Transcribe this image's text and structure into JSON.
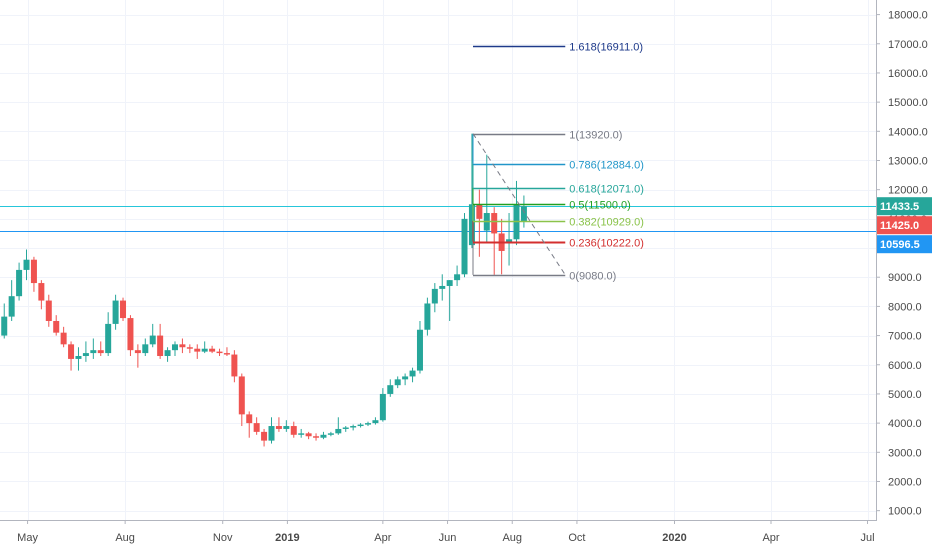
{
  "chart_data": {
    "type": "candlestick",
    "title": "",
    "y_range": [
      680,
      18500
    ],
    "y_ticks": [
      1000,
      2000,
      3000,
      4000,
      5000,
      6000,
      7000,
      8000,
      9000,
      10000,
      11000,
      12000,
      13000,
      14000,
      15000,
      16000,
      17000,
      18000
    ],
    "y_tick_labels": [
      "1000.0",
      "2000.0",
      "3000.0",
      "4000.0",
      "5000.0",
      "6000.0",
      "7000.0",
      "8000.0",
      "9000.0",
      "10000.0",
      "11000.0",
      "12000.0",
      "13000.0",
      "14000.0",
      "15000.0",
      "16000.0",
      "17000.0",
      "18000.0"
    ],
    "x_range": [
      "2018-04-05",
      "2020-07-09"
    ],
    "x_ticks": [
      {
        "date": "2018-05-01",
        "label": "May"
      },
      {
        "date": "2018-08-01",
        "label": "Aug"
      },
      {
        "date": "2018-11-01",
        "label": "Nov"
      },
      {
        "date": "2019-01-01",
        "label": "2019"
      },
      {
        "date": "2019-04-01",
        "label": "Apr"
      },
      {
        "date": "2019-06-01",
        "label": "Jun"
      },
      {
        "date": "2019-08-01",
        "label": "Aug"
      },
      {
        "date": "2019-10-01",
        "label": "Oct"
      },
      {
        "date": "2020-01-01",
        "label": "2020"
      },
      {
        "date": "2020-04-01",
        "label": "Apr"
      },
      {
        "date": "2020-07-01",
        "label": "Jul"
      }
    ],
    "colors": {
      "up": "#26a69a",
      "down": "#ef5350"
    },
    "candles": [
      {
        "date": "2018-04-09",
        "o": 7000,
        "h": 8100,
        "l": 6900,
        "c": 7650
      },
      {
        "date": "2018-04-16",
        "o": 7650,
        "h": 8900,
        "l": 7500,
        "c": 8350
      },
      {
        "date": "2018-04-23",
        "o": 8350,
        "h": 9500,
        "l": 8200,
        "c": 9250
      },
      {
        "date": "2018-04-30",
        "o": 9250,
        "h": 9950,
        "l": 8900,
        "c": 9600
      },
      {
        "date": "2018-05-07",
        "o": 9600,
        "h": 9700,
        "l": 8500,
        "c": 8800
      },
      {
        "date": "2018-05-14",
        "o": 8800,
        "h": 8900,
        "l": 7900,
        "c": 8200
      },
      {
        "date": "2018-05-21",
        "o": 8200,
        "h": 8400,
        "l": 7300,
        "c": 7500
      },
      {
        "date": "2018-05-28",
        "o": 7500,
        "h": 7700,
        "l": 7000,
        "c": 7100
      },
      {
        "date": "2018-06-04",
        "o": 7100,
        "h": 7300,
        "l": 6600,
        "c": 6700
      },
      {
        "date": "2018-06-11",
        "o": 6700,
        "h": 6800,
        "l": 5800,
        "c": 6200
      },
      {
        "date": "2018-06-18",
        "o": 6200,
        "h": 6600,
        "l": 5800,
        "c": 6300
      },
      {
        "date": "2018-06-25",
        "o": 6300,
        "h": 6800,
        "l": 6100,
        "c": 6400
      },
      {
        "date": "2018-07-02",
        "o": 6400,
        "h": 6900,
        "l": 6200,
        "c": 6500
      },
      {
        "date": "2018-07-09",
        "o": 6500,
        "h": 6800,
        "l": 6300,
        "c": 6400
      },
      {
        "date": "2018-07-16",
        "o": 6400,
        "h": 7800,
        "l": 6300,
        "c": 7400
      },
      {
        "date": "2018-07-23",
        "o": 7400,
        "h": 8400,
        "l": 7200,
        "c": 8200
      },
      {
        "date": "2018-07-30",
        "o": 8200,
        "h": 8300,
        "l": 7500,
        "c": 7600
      },
      {
        "date": "2018-08-06",
        "o": 7600,
        "h": 7700,
        "l": 6300,
        "c": 6500
      },
      {
        "date": "2018-08-13",
        "o": 6500,
        "h": 6700,
        "l": 5900,
        "c": 6400
      },
      {
        "date": "2018-08-20",
        "o": 6400,
        "h": 6900,
        "l": 6300,
        "c": 6700
      },
      {
        "date": "2018-08-27",
        "o": 6700,
        "h": 7400,
        "l": 6600,
        "c": 7000
      },
      {
        "date": "2018-09-03",
        "o": 7000,
        "h": 7400,
        "l": 6200,
        "c": 6300
      },
      {
        "date": "2018-09-10",
        "o": 6300,
        "h": 6600,
        "l": 6100,
        "c": 6500
      },
      {
        "date": "2018-09-17",
        "o": 6500,
        "h": 6800,
        "l": 6300,
        "c": 6700
      },
      {
        "date": "2018-09-24",
        "o": 6700,
        "h": 6900,
        "l": 6400,
        "c": 6600
      },
      {
        "date": "2018-10-01",
        "o": 6600,
        "h": 6700,
        "l": 6400,
        "c": 6550
      },
      {
        "date": "2018-10-08",
        "o": 6550,
        "h": 6700,
        "l": 6200,
        "c": 6450
      },
      {
        "date": "2018-10-15",
        "o": 6450,
        "h": 6800,
        "l": 6400,
        "c": 6550
      },
      {
        "date": "2018-10-22",
        "o": 6550,
        "h": 6650,
        "l": 6400,
        "c": 6450
      },
      {
        "date": "2018-10-29",
        "o": 6450,
        "h": 6550,
        "l": 6300,
        "c": 6400
      },
      {
        "date": "2018-11-05",
        "o": 6400,
        "h": 6600,
        "l": 6300,
        "c": 6350
      },
      {
        "date": "2018-11-12",
        "o": 6350,
        "h": 6500,
        "l": 5400,
        "c": 5600
      },
      {
        "date": "2018-11-19",
        "o": 5600,
        "h": 5700,
        "l": 3900,
        "c": 4300
      },
      {
        "date": "2018-11-26",
        "o": 4300,
        "h": 4400,
        "l": 3500,
        "c": 4000
      },
      {
        "date": "2018-12-03",
        "o": 4000,
        "h": 4200,
        "l": 3600,
        "c": 3700
      },
      {
        "date": "2018-12-10",
        "o": 3700,
        "h": 3800,
        "l": 3200,
        "c": 3400
      },
      {
        "date": "2018-12-17",
        "o": 3400,
        "h": 4200,
        "l": 3300,
        "c": 3900
      },
      {
        "date": "2018-12-24",
        "o": 3900,
        "h": 4200,
        "l": 3700,
        "c": 3800
      },
      {
        "date": "2018-12-31",
        "o": 3800,
        "h": 4100,
        "l": 3700,
        "c": 3900
      },
      {
        "date": "2019-01-07",
        "o": 3900,
        "h": 4050,
        "l": 3500,
        "c": 3600
      },
      {
        "date": "2019-01-14",
        "o": 3600,
        "h": 3800,
        "l": 3500,
        "c": 3650
      },
      {
        "date": "2019-01-21",
        "o": 3650,
        "h": 3700,
        "l": 3450,
        "c": 3550
      },
      {
        "date": "2019-01-28",
        "o": 3550,
        "h": 3650,
        "l": 3400,
        "c": 3500
      },
      {
        "date": "2019-02-04",
        "o": 3500,
        "h": 3700,
        "l": 3450,
        "c": 3600
      },
      {
        "date": "2019-02-11",
        "o": 3600,
        "h": 3700,
        "l": 3550,
        "c": 3650
      },
      {
        "date": "2019-02-18",
        "o": 3650,
        "h": 4200,
        "l": 3600,
        "c": 3800
      },
      {
        "date": "2019-02-25",
        "o": 3800,
        "h": 3900,
        "l": 3700,
        "c": 3850
      },
      {
        "date": "2019-03-04",
        "o": 3850,
        "h": 3950,
        "l": 3750,
        "c": 3900
      },
      {
        "date": "2019-03-11",
        "o": 3900,
        "h": 4000,
        "l": 3850,
        "c": 3950
      },
      {
        "date": "2019-03-18",
        "o": 3950,
        "h": 4050,
        "l": 3900,
        "c": 4000
      },
      {
        "date": "2019-03-25",
        "o": 4000,
        "h": 4200,
        "l": 3950,
        "c": 4100
      },
      {
        "date": "2019-04-01",
        "o": 4100,
        "h": 5200,
        "l": 4050,
        "c": 5000
      },
      {
        "date": "2019-04-08",
        "o": 5000,
        "h": 5500,
        "l": 4900,
        "c": 5300
      },
      {
        "date": "2019-04-15",
        "o": 5300,
        "h": 5600,
        "l": 5200,
        "c": 5500
      },
      {
        "date": "2019-04-22",
        "o": 5500,
        "h": 5700,
        "l": 5300,
        "c": 5600
      },
      {
        "date": "2019-04-29",
        "o": 5600,
        "h": 5900,
        "l": 5400,
        "c": 5800
      },
      {
        "date": "2019-05-06",
        "o": 5800,
        "h": 7500,
        "l": 5700,
        "c": 7200
      },
      {
        "date": "2019-05-13",
        "o": 7200,
        "h": 8300,
        "l": 7000,
        "c": 8100
      },
      {
        "date": "2019-05-20",
        "o": 8100,
        "h": 8800,
        "l": 7800,
        "c": 8600
      },
      {
        "date": "2019-05-27",
        "o": 8600,
        "h": 9100,
        "l": 8200,
        "c": 8700
      },
      {
        "date": "2019-06-03",
        "o": 8700,
        "h": 8900,
        "l": 7500,
        "c": 8900
      },
      {
        "date": "2019-06-10",
        "o": 8900,
        "h": 9400,
        "l": 8700,
        "c": 9100
      },
      {
        "date": "2019-06-17",
        "o": 9100,
        "h": 11200,
        "l": 9000,
        "c": 11000
      },
      {
        "date": "2019-06-24",
        "o": 10100,
        "h": 13920,
        "l": 10000,
        "c": 11500
      },
      {
        "date": "2019-07-01",
        "o": 11500,
        "h": 12000,
        "l": 9700,
        "c": 11000
      },
      {
        "date": "2019-07-08",
        "o": 10600,
        "h": 13200,
        "l": 10200,
        "c": 11200
      },
      {
        "date": "2019-07-15",
        "o": 11200,
        "h": 11400,
        "l": 9080,
        "c": 10500
      },
      {
        "date": "2019-07-22",
        "o": 10500,
        "h": 11000,
        "l": 9100,
        "c": 9900
      },
      {
        "date": "2019-07-29",
        "o": 10200,
        "h": 11200,
        "l": 9400,
        "c": 10300
      },
      {
        "date": "2019-08-05",
        "o": 10300,
        "h": 12300,
        "l": 10100,
        "c": 11500
      },
      {
        "date": "2019-08-12",
        "o": 10900,
        "h": 11800,
        "l": 10700,
        "c": 11433.5
      }
    ],
    "fibonacci": {
      "start_date": "2019-06-25",
      "end_date": "2019-09-20",
      "levels": [
        {
          "ratio": "1.618",
          "price": 16911,
          "label": "1.618(16911.0)",
          "color": "#1e3a8a"
        },
        {
          "ratio": "1",
          "price": 13920,
          "label": "1(13920.0)",
          "color": "#787b86"
        },
        {
          "ratio": "0.786",
          "price": 12884,
          "label": "0.786(12884.0)",
          "color": "#2196c9"
        },
        {
          "ratio": "0.618",
          "price": 12071,
          "label": "0.618(12071.0)",
          "color": "#26a69a"
        },
        {
          "ratio": "0.5",
          "price": 11500,
          "label": "0.5(11500.0)",
          "color": "#22a022"
        },
        {
          "ratio": "0.382",
          "price": 10929,
          "label": "0.382(10929.0)",
          "color": "#8bc34a"
        },
        {
          "ratio": "0.236",
          "price": 10222,
          "label": "0.236(10222.0)",
          "color": "#d32f2f"
        },
        {
          "ratio": "0",
          "price": 9080,
          "label": "0(9080.0)",
          "color": "#787b86"
        }
      ],
      "trend_line": {
        "from_date": "2019-06-25",
        "from_price": 13920,
        "to_date": "2019-09-20",
        "to_price": 9080
      }
    },
    "horizontal_lines": [
      {
        "price": 11425,
        "color": "#26c6da"
      },
      {
        "price": 10596.5,
        "color": "#2196f3"
      }
    ],
    "price_tags": [
      {
        "price": 11425,
        "label": "11425.0",
        "color": "#ef5350"
      },
      {
        "price": 11433.5,
        "label": "11433.5",
        "color": "#26a69a"
      },
      {
        "price": 10596.5,
        "label": "10596.5",
        "color": "#2196f3"
      }
    ]
  }
}
